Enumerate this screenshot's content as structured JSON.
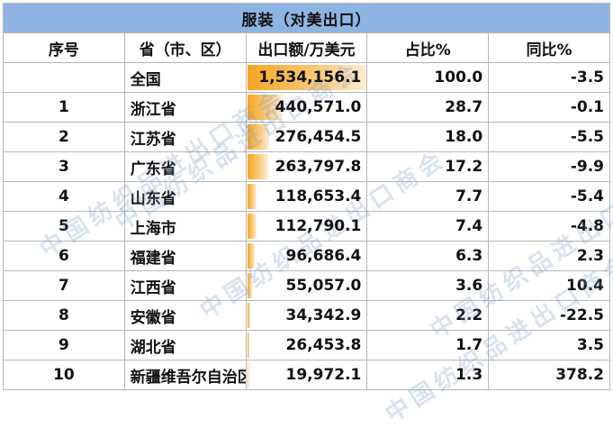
{
  "title": "服装（对美出口）",
  "headers": {
    "index": "序号",
    "province": "省（市、区）",
    "export_value": "出口额/万美元",
    "share": "占比%",
    "yoy": "同比%"
  },
  "total_max": 1534156.1,
  "rows": [
    {
      "index": "",
      "province": "全国",
      "export_value": "1,534,156.1",
      "value_num": 1534156.1,
      "share": "100.0",
      "yoy": "-3.5"
    },
    {
      "index": "1",
      "province": "浙江省",
      "export_value": "440,571.0",
      "value_num": 440571.0,
      "share": "28.7",
      "yoy": "-0.1"
    },
    {
      "index": "2",
      "province": "江苏省",
      "export_value": "276,454.5",
      "value_num": 276454.5,
      "share": "18.0",
      "yoy": "-5.5"
    },
    {
      "index": "3",
      "province": "广东省",
      "export_value": "263,797.8",
      "value_num": 263797.8,
      "share": "17.2",
      "yoy": "-9.9"
    },
    {
      "index": "4",
      "province": "山东省",
      "export_value": "118,653.4",
      "value_num": 118653.4,
      "share": "7.7",
      "yoy": "-5.4"
    },
    {
      "index": "5",
      "province": "上海市",
      "export_value": "112,790.1",
      "value_num": 112790.1,
      "share": "7.4",
      "yoy": "-4.8"
    },
    {
      "index": "6",
      "province": "福建省",
      "export_value": "96,686.4",
      "value_num": 96686.4,
      "share": "6.3",
      "yoy": "2.3"
    },
    {
      "index": "7",
      "province": "江西省",
      "export_value": "55,057.0",
      "value_num": 55057.0,
      "share": "3.6",
      "yoy": "10.4"
    },
    {
      "index": "8",
      "province": "安徽省",
      "export_value": "34,342.9",
      "value_num": 34342.9,
      "share": "2.2",
      "yoy": "-22.5"
    },
    {
      "index": "9",
      "province": "湖北省",
      "export_value": "26,453.8",
      "value_num": 26453.8,
      "share": "1.7",
      "yoy": "3.5"
    },
    {
      "index": "10",
      "province": "新疆维吾尔自治区",
      "export_value": "19,972.1",
      "value_num": 19972.1,
      "share": "1.3",
      "yoy": "378.2"
    }
  ],
  "watermark": "中国纺织品进出口商会",
  "colors": {
    "title_bg": "#8eb4e3",
    "bar": "#f5a623"
  }
}
